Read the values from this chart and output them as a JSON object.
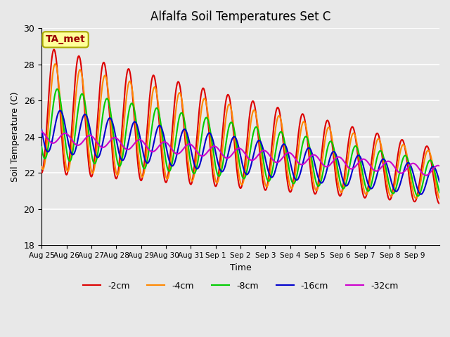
{
  "title": "Alfalfa Soil Temperatures Set C",
  "xlabel": "Time",
  "ylabel": "Soil Temperature (C)",
  "ylim": [
    18,
    30
  ],
  "n_days": 16,
  "background_color": "#e8e8e8",
  "plot_bg_color": "#e8e8e8",
  "grid_color": "#ffffff",
  "annotation_text": "TA_met",
  "annotation_bg": "#ffff99",
  "annotation_border": "#aaaa00",
  "annotation_text_color": "#990000",
  "x_tick_labels": [
    "Aug 25",
    "Aug 26",
    "Aug 27",
    "Aug 28",
    "Aug 29",
    "Aug 30",
    "Aug 31",
    "Sep 1",
    "Sep 2",
    "Sep 3",
    "Sep 4",
    "Sep 5",
    "Sep 6",
    "Sep 7",
    "Sep 8",
    "Sep 9"
  ],
  "series": {
    "-2cm": {
      "color": "#dd0000",
      "lw": 1.5
    },
    "-4cm": {
      "color": "#ff8800",
      "lw": 1.5
    },
    "-8cm": {
      "color": "#00cc00",
      "lw": 1.5
    },
    "-16cm": {
      "color": "#0000cc",
      "lw": 1.5
    },
    "-32cm": {
      "color": "#cc00cc",
      "lw": 1.5
    }
  },
  "legend_order": [
    "-2cm",
    "-4cm",
    "-8cm",
    "-16cm",
    "-32cm"
  ]
}
